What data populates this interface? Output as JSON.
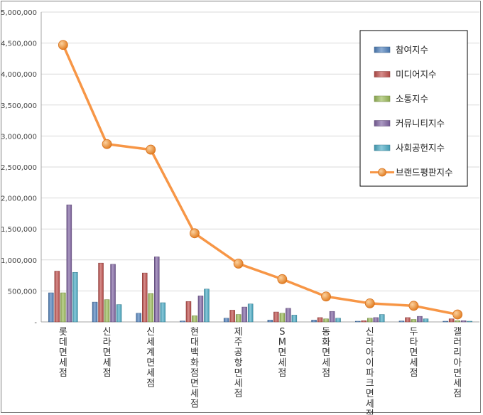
{
  "chart_data": {
    "type": "bar",
    "categories": [
      "롯데면세점",
      "신라면세점",
      "신세계면세점",
      "현대백화점면세점",
      "제주공항면세점",
      "SM면세점",
      "동화면세점",
      "신라아이파크면세점",
      "두타면세점",
      "갤러리아면세점"
    ],
    "series": [
      {
        "name": "참여지수",
        "type": "bar",
        "color": "#4f81bd",
        "values": [
          470000,
          320000,
          140000,
          15000,
          60000,
          30000,
          30000,
          10000,
          15000,
          10000
        ]
      },
      {
        "name": "미디어지수",
        "type": "bar",
        "color": "#c0504d",
        "values": [
          820000,
          950000,
          790000,
          330000,
          190000,
          160000,
          70000,
          20000,
          70000,
          50000
        ]
      },
      {
        "name": "소통지수",
        "type": "bar",
        "color": "#9bbb59",
        "values": [
          470000,
          360000,
          460000,
          100000,
          120000,
          140000,
          50000,
          60000,
          40000,
          20000
        ]
      },
      {
        "name": "커뮤니티지수",
        "type": "bar",
        "color": "#8064a2",
        "values": [
          1890000,
          930000,
          1050000,
          420000,
          240000,
          220000,
          170000,
          70000,
          90000,
          20000
        ]
      },
      {
        "name": "사회공헌지수",
        "type": "bar",
        "color": "#4bacc6",
        "values": [
          800000,
          280000,
          310000,
          530000,
          290000,
          110000,
          60000,
          120000,
          50000,
          10000
        ]
      },
      {
        "name": "브랜드평판지수",
        "type": "line",
        "color": "#f79646",
        "values": [
          4470000,
          2870000,
          2780000,
          1430000,
          940000,
          690000,
          410000,
          300000,
          260000,
          120000
        ]
      }
    ],
    "y_ticks": [
      "-",
      "500,000",
      "1,000,000",
      "1,500,000",
      "2,000,000",
      "2,500,000",
      "3,000,000",
      "3,500,000",
      "4,000,000",
      "4,500,000",
      "5,000,000"
    ],
    "ylim": [
      0,
      5000000
    ],
    "grid": true,
    "legend_position": "right"
  }
}
